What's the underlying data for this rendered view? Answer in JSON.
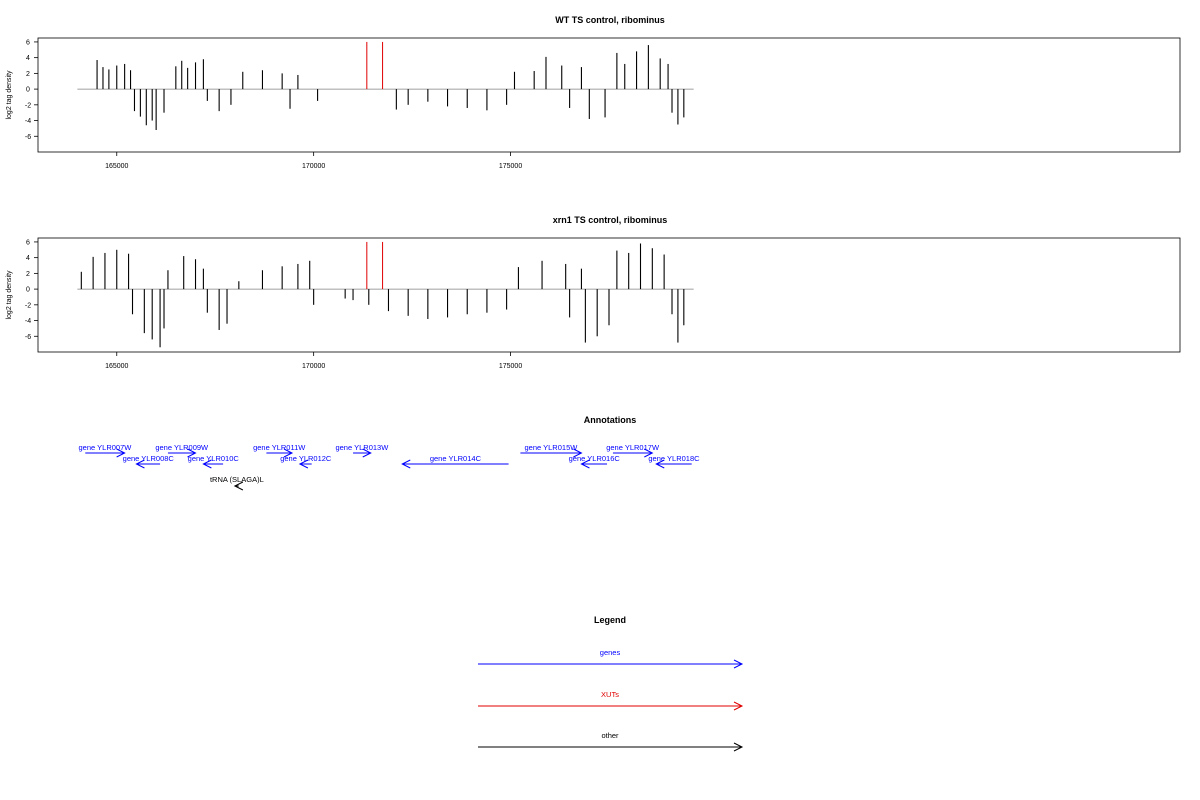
{
  "colors": {
    "bars": "#000000",
    "xut": "#e00000",
    "genes": "#0000ff",
    "other": "#000000",
    "baseline": "#808080"
  },
  "chart_data": [
    {
      "type": "bar",
      "title": "WT TS control, ribominus",
      "ylabel": "log2 tag density",
      "xlim": [
        163000,
        192000
      ],
      "ylim": [
        -8,
        6.5
      ],
      "xticks": [
        165000,
        170000,
        175000
      ],
      "yticks": [
        6,
        4,
        2,
        0,
        -2,
        -4,
        -6
      ],
      "baseline": 0,
      "red_markers": [
        {
          "x": 171350,
          "y": 6
        },
        {
          "x": 171750,
          "y": 6
        }
      ],
      "series": [
        {
          "values": [
            [
              164500,
              3.7
            ],
            [
              164650,
              2.8
            ],
            [
              164800,
              2.5
            ],
            [
              165000,
              3.0
            ],
            [
              165200,
              3.2
            ],
            [
              165350,
              2.4
            ],
            [
              165450,
              -2.8
            ],
            [
              165600,
              -3.5
            ],
            [
              165750,
              -4.6
            ],
            [
              165900,
              -4.0
            ],
            [
              166000,
              -5.2
            ],
            [
              166200,
              -3.0
            ],
            [
              166500,
              2.9
            ],
            [
              166650,
              3.6
            ],
            [
              166800,
              2.7
            ],
            [
              167000,
              3.4
            ],
            [
              167200,
              3.8
            ],
            [
              167300,
              -1.5
            ],
            [
              167600,
              -2.8
            ],
            [
              167900,
              -2.0
            ],
            [
              168200,
              2.2
            ],
            [
              168700,
              2.4
            ],
            [
              169200,
              2.0
            ],
            [
              169400,
              -2.5
            ],
            [
              169600,
              1.8
            ],
            [
              170100,
              -1.5
            ],
            [
              172100,
              -2.6
            ],
            [
              172400,
              -2.0
            ],
            [
              172900,
              -1.6
            ],
            [
              173400,
              -2.2
            ],
            [
              173900,
              -2.4
            ],
            [
              174400,
              -2.7
            ],
            [
              174900,
              -2.0
            ],
            [
              175100,
              2.2
            ],
            [
              175600,
              2.3
            ],
            [
              175900,
              4.1
            ],
            [
              176300,
              3.0
            ],
            [
              176800,
              2.8
            ],
            [
              176500,
              -2.4
            ],
            [
              177000,
              -3.8
            ],
            [
              177400,
              -3.6
            ],
            [
              177700,
              4.6
            ],
            [
              177900,
              3.2
            ],
            [
              178200,
              4.8
            ],
            [
              178500,
              5.6
            ],
            [
              178800,
              3.9
            ],
            [
              179000,
              3.2
            ],
            [
              179100,
              -3.0
            ],
            [
              179250,
              -4.5
            ],
            [
              179400,
              -3.6
            ]
          ]
        }
      ]
    },
    {
      "type": "bar",
      "title": "xrn1 TS control, ribominus",
      "ylabel": "log2 tag density",
      "xlim": [
        163000,
        192000
      ],
      "ylim": [
        -8,
        6.5
      ],
      "xticks": [
        165000,
        170000,
        175000
      ],
      "yticks": [
        6,
        4,
        2,
        0,
        -2,
        -4,
        -6
      ],
      "baseline": 0,
      "red_markers": [
        {
          "x": 171350,
          "y": 6
        },
        {
          "x": 171750,
          "y": 6
        }
      ],
      "series": [
        {
          "values": [
            [
              164100,
              2.2
            ],
            [
              164400,
              4.1
            ],
            [
              164700,
              4.6
            ],
            [
              165000,
              5.0
            ],
            [
              165300,
              4.5
            ],
            [
              165400,
              -3.2
            ],
            [
              165700,
              -5.6
            ],
            [
              165900,
              -6.4
            ],
            [
              166100,
              -7.4
            ],
            [
              166200,
              -5.0
            ],
            [
              166300,
              2.4
            ],
            [
              166700,
              4.2
            ],
            [
              167000,
              3.8
            ],
            [
              167200,
              2.6
            ],
            [
              167300,
              -3.0
            ],
            [
              167600,
              -5.2
            ],
            [
              167800,
              -4.4
            ],
            [
              168100,
              1.0
            ],
            [
              168700,
              2.4
            ],
            [
              169200,
              2.9
            ],
            [
              169600,
              3.2
            ],
            [
              169900,
              3.6
            ],
            [
              170000,
              -2.0
            ],
            [
              170800,
              -1.2
            ],
            [
              171000,
              -1.4
            ],
            [
              171400,
              -2.0
            ],
            [
              171900,
              -2.8
            ],
            [
              172400,
              -3.4
            ],
            [
              172900,
              -3.8
            ],
            [
              173400,
              -3.6
            ],
            [
              173900,
              -3.2
            ],
            [
              174400,
              -3.0
            ],
            [
              174900,
              -2.6
            ],
            [
              175200,
              2.8
            ],
            [
              175800,
              3.6
            ],
            [
              176400,
              3.2
            ],
            [
              176800,
              2.6
            ],
            [
              176500,
              -3.6
            ],
            [
              176900,
              -6.8
            ],
            [
              177200,
              -6.0
            ],
            [
              177500,
              -4.6
            ],
            [
              177700,
              4.9
            ],
            [
              178000,
              4.6
            ],
            [
              178300,
              5.8
            ],
            [
              178600,
              5.2
            ],
            [
              178900,
              4.4
            ],
            [
              179100,
              -3.2
            ],
            [
              179250,
              -6.8
            ],
            [
              179400,
              -4.6
            ]
          ]
        }
      ]
    }
  ],
  "annotations": {
    "title": "Annotations",
    "items": [
      {
        "label": "gene YLR007W",
        "start": 164200,
        "end": 165200,
        "strand": "+",
        "row": 0,
        "kind": "genes"
      },
      {
        "label": "gene YLR008C",
        "start": 165500,
        "end": 166100,
        "strand": "-",
        "row": 1,
        "kind": "genes"
      },
      {
        "label": "gene YLR009W",
        "start": 166300,
        "end": 167000,
        "strand": "+",
        "row": 0,
        "kind": "genes"
      },
      {
        "label": "gene YLR010C",
        "start": 167200,
        "end": 167700,
        "strand": "-",
        "row": 1,
        "kind": "genes"
      },
      {
        "label": "tRNA (SLAGA)L",
        "start": 168000,
        "end": 168100,
        "strand": "-",
        "row": 2,
        "kind": "other"
      },
      {
        "label": "gene YLR011W",
        "start": 168800,
        "end": 169450,
        "strand": "+",
        "row": 0,
        "kind": "genes"
      },
      {
        "label": "gene YLR012C",
        "start": 169650,
        "end": 169950,
        "strand": "-",
        "row": 1,
        "kind": "genes"
      },
      {
        "label": "gene YLR013W",
        "start": 171000,
        "end": 171450,
        "strand": "+",
        "row": 0,
        "kind": "genes"
      },
      {
        "label": "gene YLR014C",
        "start": 172250,
        "end": 174950,
        "strand": "-",
        "row": 1,
        "kind": "genes"
      },
      {
        "label": "gene YLR015W",
        "start": 175250,
        "end": 176800,
        "strand": "+",
        "row": 0,
        "kind": "genes"
      },
      {
        "label": "gene YLR016C",
        "start": 176800,
        "end": 177450,
        "strand": "-",
        "row": 1,
        "kind": "genes"
      },
      {
        "label": "gene YLR017W",
        "start": 177600,
        "end": 178600,
        "strand": "+",
        "row": 0,
        "kind": "genes"
      },
      {
        "label": "gene YLR018C",
        "start": 178700,
        "end": 179600,
        "strand": "-",
        "row": 1,
        "kind": "genes"
      }
    ]
  },
  "legend": {
    "title": "Legend",
    "items": [
      {
        "label": "genes",
        "kind": "genes"
      },
      {
        "label": "XUTs",
        "kind": "xut"
      },
      {
        "label": "other",
        "kind": "other"
      }
    ]
  }
}
